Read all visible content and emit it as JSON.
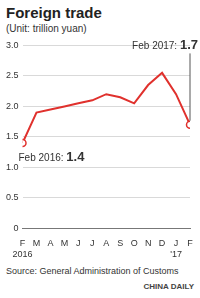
{
  "chart_data": {
    "type": "line",
    "title": "Foreign trade",
    "subtitle": "(Unit: trillion yuan)",
    "source": "Source: General Administration of Customs",
    "credit": "CHINA DAILY",
    "categories": [
      [
        "F",
        "2016"
      ],
      "M",
      "A",
      "M",
      "J",
      "J",
      "A",
      "S",
      "O",
      "N",
      "D",
      [
        "J",
        "'17"
      ],
      "F"
    ],
    "values": [
      1.4,
      1.9,
      1.95,
      2.0,
      2.05,
      2.1,
      2.2,
      2.15,
      2.05,
      2.35,
      2.55,
      2.2,
      1.7
    ],
    "color": "#e0312d",
    "marker": "circle",
    "ylim": [
      0,
      3
    ],
    "yticks": [
      0,
      0.5,
      {
        "value": 1,
        "label": "1.0"
      },
      1.5,
      {
        "value": 2,
        "label": "2.0"
      },
      2.5,
      {
        "value": 3,
        "label": "3.0"
      }
    ],
    "grid": true,
    "annotations": [
      {
        "text": "Feb 2016: 1.4",
        "index": 0
      },
      {
        "text": "Feb 2017: 1.7",
        "index": 12
      }
    ]
  }
}
